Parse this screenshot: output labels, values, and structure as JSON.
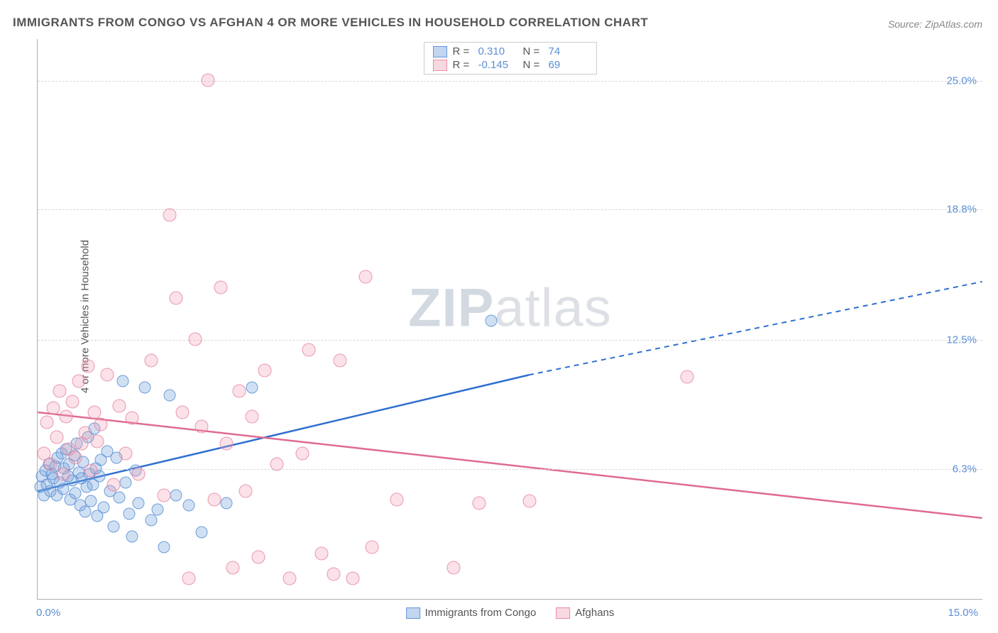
{
  "title": "IMMIGRANTS FROM CONGO VS AFGHAN 4 OR MORE VEHICLES IN HOUSEHOLD CORRELATION CHART",
  "source": "Source: ZipAtlas.com",
  "ylabel": "4 or more Vehicles in Household",
  "watermark_zip": "ZIP",
  "watermark_atlas": "atlas",
  "chart": {
    "type": "scatter",
    "xlim": [
      0,
      15
    ],
    "ylim": [
      0,
      27
    ],
    "x_ticks": [
      {
        "val": 0,
        "label": "0.0%"
      },
      {
        "val": 15,
        "label": "15.0%"
      }
    ],
    "y_ticks": [
      {
        "val": 6.3,
        "label": "6.3%"
      },
      {
        "val": 12.5,
        "label": "12.5%"
      },
      {
        "val": 18.8,
        "label": "18.8%"
      },
      {
        "val": 25.0,
        "label": "25.0%"
      }
    ],
    "grid_color": "#d8d8d8",
    "axis_color": "#b0b0b0",
    "background_color": "#ffffff",
    "tick_color": "#5a8fd6",
    "axis_label_color": "#555555",
    "series": [
      {
        "name": "Immigrants from Congo",
        "short": "blue",
        "fill": "rgba(120,165,220,0.35)",
        "stroke": "rgba(90,143,214,0.85)",
        "line_color": "#2f6fd0",
        "marker_size": 17,
        "R": "0.310",
        "N": "74",
        "trend": {
          "x1": 0,
          "y1": 5.2,
          "x2_solid": 7.8,
          "y2_solid": 10.8,
          "x2_dash": 15,
          "y2_dash": 15.3
        },
        "points": [
          [
            0.05,
            5.4
          ],
          [
            0.07,
            5.9
          ],
          [
            0.1,
            5.0
          ],
          [
            0.12,
            6.2
          ],
          [
            0.15,
            5.5
          ],
          [
            0.18,
            6.5
          ],
          [
            0.2,
            5.2
          ],
          [
            0.22,
            6.0
          ],
          [
            0.25,
            5.8
          ],
          [
            0.28,
            6.4
          ],
          [
            0.3,
            5.0
          ],
          [
            0.32,
            6.8
          ],
          [
            0.35,
            5.6
          ],
          [
            0.38,
            7.0
          ],
          [
            0.4,
            5.3
          ],
          [
            0.42,
            6.3
          ],
          [
            0.45,
            7.2
          ],
          [
            0.48,
            5.9
          ],
          [
            0.5,
            6.5
          ],
          [
            0.52,
            4.8
          ],
          [
            0.55,
            5.7
          ],
          [
            0.58,
            6.9
          ],
          [
            0.6,
            5.1
          ],
          [
            0.62,
            7.5
          ],
          [
            0.65,
            6.1
          ],
          [
            0.68,
            4.5
          ],
          [
            0.7,
            5.8
          ],
          [
            0.72,
            6.6
          ],
          [
            0.75,
            4.2
          ],
          [
            0.78,
            5.4
          ],
          [
            0.8,
            7.8
          ],
          [
            0.82,
            6.0
          ],
          [
            0.85,
            4.7
          ],
          [
            0.88,
            5.5
          ],
          [
            0.9,
            8.2
          ],
          [
            0.92,
            6.3
          ],
          [
            0.95,
            4.0
          ],
          [
            0.98,
            5.9
          ],
          [
            1.0,
            6.7
          ],
          [
            1.05,
            4.4
          ],
          [
            1.1,
            7.1
          ],
          [
            1.15,
            5.2
          ],
          [
            1.2,
            3.5
          ],
          [
            1.25,
            6.8
          ],
          [
            1.3,
            4.9
          ],
          [
            1.35,
            10.5
          ],
          [
            1.4,
            5.6
          ],
          [
            1.45,
            4.1
          ],
          [
            1.5,
            3.0
          ],
          [
            1.55,
            6.2
          ],
          [
            1.6,
            4.6
          ],
          [
            1.7,
            10.2
          ],
          [
            1.8,
            3.8
          ],
          [
            1.9,
            4.3
          ],
          [
            2.0,
            2.5
          ],
          [
            2.1,
            9.8
          ],
          [
            2.2,
            5.0
          ],
          [
            2.4,
            4.5
          ],
          [
            2.6,
            3.2
          ],
          [
            3.0,
            4.6
          ],
          [
            3.4,
            10.2
          ],
          [
            7.2,
            13.4
          ]
        ]
      },
      {
        "name": "Afghans",
        "short": "pink",
        "fill": "rgba(240,160,180,0.30)",
        "stroke": "rgba(230,130,160,0.80)",
        "line_color": "#e06a92",
        "marker_size": 19,
        "R": "-0.145",
        "N": "69",
        "trend": {
          "x1": 0,
          "y1": 9.0,
          "x2_solid": 15,
          "y2_solid": 3.9,
          "x2_dash": 15,
          "y2_dash": 3.9
        },
        "points": [
          [
            0.1,
            7.0
          ],
          [
            0.15,
            8.5
          ],
          [
            0.2,
            6.5
          ],
          [
            0.25,
            9.2
          ],
          [
            0.3,
            7.8
          ],
          [
            0.35,
            10.0
          ],
          [
            0.4,
            6.0
          ],
          [
            0.45,
            8.8
          ],
          [
            0.5,
            7.2
          ],
          [
            0.55,
            9.5
          ],
          [
            0.6,
            6.8
          ],
          [
            0.65,
            10.5
          ],
          [
            0.7,
            7.5
          ],
          [
            0.75,
            8.0
          ],
          [
            0.8,
            11.2
          ],
          [
            0.85,
            6.2
          ],
          [
            0.9,
            9.0
          ],
          [
            0.95,
            7.6
          ],
          [
            1.0,
            8.4
          ],
          [
            1.1,
            10.8
          ],
          [
            1.2,
            5.5
          ],
          [
            1.3,
            9.3
          ],
          [
            1.4,
            7.0
          ],
          [
            1.5,
            8.7
          ],
          [
            1.6,
            6.0
          ],
          [
            1.8,
            11.5
          ],
          [
            2.0,
            5.0
          ],
          [
            2.1,
            18.5
          ],
          [
            2.2,
            14.5
          ],
          [
            2.3,
            9.0
          ],
          [
            2.4,
            1.0
          ],
          [
            2.5,
            12.5
          ],
          [
            2.6,
            8.3
          ],
          [
            2.7,
            25.0
          ],
          [
            2.8,
            4.8
          ],
          [
            2.9,
            15.0
          ],
          [
            3.0,
            7.5
          ],
          [
            3.1,
            1.5
          ],
          [
            3.2,
            10.0
          ],
          [
            3.3,
            5.2
          ],
          [
            3.4,
            8.8
          ],
          [
            3.5,
            2.0
          ],
          [
            3.6,
            11.0
          ],
          [
            3.8,
            6.5
          ],
          [
            4.0,
            1.0
          ],
          [
            4.2,
            7.0
          ],
          [
            4.3,
            12.0
          ],
          [
            4.5,
            2.2
          ],
          [
            4.7,
            1.2
          ],
          [
            4.8,
            11.5
          ],
          [
            5.0,
            1.0
          ],
          [
            5.2,
            15.5
          ],
          [
            5.3,
            2.5
          ],
          [
            5.7,
            4.8
          ],
          [
            6.6,
            1.5
          ],
          [
            7.0,
            4.6
          ],
          [
            7.8,
            4.7
          ],
          [
            10.3,
            10.7
          ]
        ]
      }
    ]
  },
  "legend_top": {
    "r_label": "R =",
    "n_label": "N ="
  },
  "legend_bottom": [
    {
      "swatch": "blue",
      "label": "Immigrants from Congo"
    },
    {
      "swatch": "pink",
      "label": "Afghans"
    }
  ]
}
